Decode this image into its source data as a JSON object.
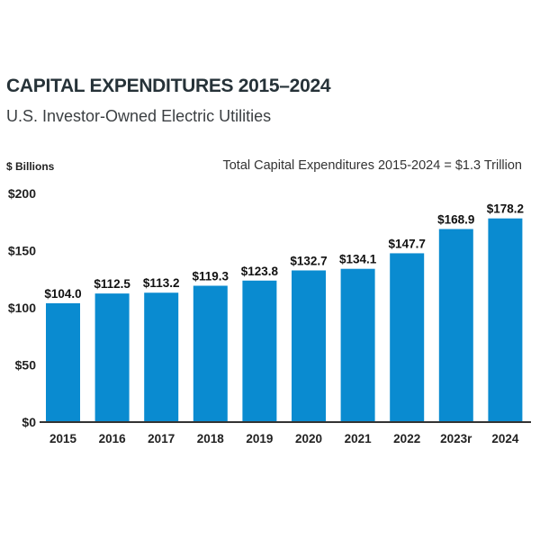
{
  "header": {
    "title": "CAPITAL EXPENDITURES 2015–2024",
    "subtitle": "U.S. Investor-Owned Electric Utilities"
  },
  "chart_data": {
    "type": "bar",
    "title": "CAPITAL EXPENDITURES 2015–2024",
    "subtitle": "U.S. Investor-Owned Electric Utilities",
    "ylabel": "$ Billions",
    "xlabel": "",
    "annotation": "Total Capital Expenditures 2015-2024 = $1.3 Trillion",
    "categories": [
      "2015",
      "2016",
      "2017",
      "2018",
      "2019",
      "2020",
      "2021",
      "2022",
      "2023r",
      "2024"
    ],
    "values": [
      104.0,
      112.5,
      113.2,
      119.3,
      123.8,
      132.7,
      134.1,
      147.7,
      168.9,
      178.2
    ],
    "data_labels": [
      "$104.0",
      "$112.5",
      "$113.2",
      "$119.3",
      "$123.8",
      "$132.7",
      "$134.1",
      "$147.7",
      "$168.9",
      "$178.2"
    ],
    "yticks": [
      0,
      50,
      100,
      150,
      200
    ],
    "ytick_labels": [
      "$0",
      "$50",
      "$100",
      "$150",
      "$200"
    ],
    "ylim": [
      0,
      200
    ],
    "grid": false,
    "legend": "none",
    "bar_color": "#0a8bd0",
    "axis_color": "#333333"
  }
}
